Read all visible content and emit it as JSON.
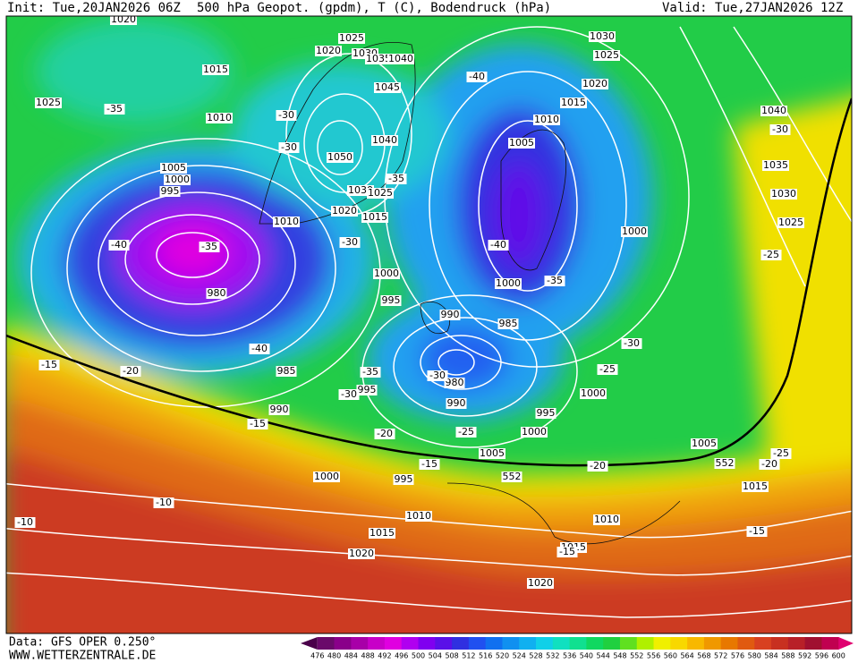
{
  "header": {
    "init": "Init: Tue,20JAN2026 06Z",
    "title": "500 hPa Geopot. (gpdm), T (C), Bodendruck (hPa)",
    "valid": "Valid: Tue,27JAN2026 12Z"
  },
  "footer": {
    "data": "Data: GFS OPER 0.250°",
    "site": "WWW.WETTERZENTRALE.DE"
  },
  "legend": {
    "labels": [
      476,
      480,
      484,
      488,
      492,
      496,
      500,
      504,
      508,
      512,
      516,
      520,
      524,
      528,
      532,
      536,
      540,
      544,
      548,
      552,
      556,
      560,
      564,
      568,
      572,
      576,
      580,
      584,
      588,
      592,
      596,
      600
    ],
    "colors": [
      "#4a004a",
      "#6a0a6a",
      "#8a008a",
      "#a800a8",
      "#c800c8",
      "#e000e0",
      "#b000f0",
      "#8000f0",
      "#5a10e8",
      "#3030e0",
      "#2050f0",
      "#1070f0",
      "#1090f0",
      "#10b0f0",
      "#10d0e8",
      "#10e0c0",
      "#10e090",
      "#10d860",
      "#20d040",
      "#60e020",
      "#b0f000",
      "#f0f000",
      "#f8d800",
      "#f8b800",
      "#f09800",
      "#e87800",
      "#e05a10",
      "#d84020",
      "#c83020",
      "#b82028",
      "#a01030",
      "#c00050",
      "#e00070"
    ]
  },
  "map": {
    "pressure_labels": [
      1020,
      1025,
      1020,
      1030,
      1035,
      1040,
      1030,
      1025,
      1015,
      1025,
      1045,
      1020,
      1015,
      1010,
      1010,
      1005,
      1040,
      1050,
      1005,
      1000,
      995,
      1030,
      1025,
      1020,
      1015,
      1010,
      1000,
      980,
      1000,
      995,
      1000,
      990,
      985,
      985,
      995,
      980,
      990,
      990,
      1000,
      995,
      1000,
      1005,
      552,
      552,
      1005,
      1000,
      995,
      1010,
      1010,
      1015,
      1015,
      1020,
      1020,
      1015,
      1040,
      1035,
      1030,
      1025
    ],
    "temperature_labels": [
      -35,
      -30,
      -30,
      -35,
      -40,
      -40,
      -35,
      -30,
      -40,
      -35,
      -40,
      -20,
      -15,
      -35,
      -30,
      -30,
      -30,
      -25,
      -15,
      -20,
      -25,
      -15,
      -20,
      -20,
      -25,
      -25,
      -30,
      -10,
      -10,
      -15,
      -15
    ]
  }
}
